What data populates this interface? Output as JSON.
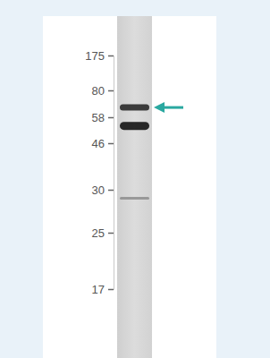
{
  "chart_data": {
    "type": "blot",
    "values": [
      66,
      54,
      29
    ],
    "ylim": [
      17,
      175
    ],
    "yticks": [
      175,
      80,
      58,
      46,
      30,
      25,
      17
    ],
    "tick_labels": "y",
    "color": "#2aa8a0"
  }
}
